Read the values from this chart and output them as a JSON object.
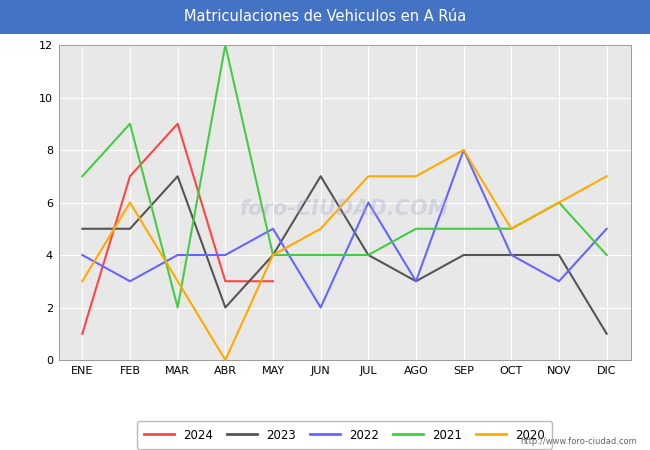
{
  "title": "Matriculaciones de Vehiculos en A Rúa",
  "title_bg_color": "#4472C4",
  "title_text_color": "#FFFFFF",
  "months": [
    "ENE",
    "FEB",
    "MAR",
    "ABR",
    "MAY",
    "JUN",
    "JUL",
    "AGO",
    "SEP",
    "OCT",
    "NOV",
    "DIC"
  ],
  "ylim": [
    0,
    12
  ],
  "yticks": [
    0,
    2,
    4,
    6,
    8,
    10,
    12
  ],
  "series": {
    "2024": {
      "color": "#FF4444",
      "values": [
        1,
        7,
        9,
        3,
        3,
        null,
        null,
        null,
        null,
        null,
        null,
        null
      ]
    },
    "2023": {
      "color": "#555555",
      "values": [
        5,
        5,
        7,
        2,
        4,
        7,
        4,
        3,
        4,
        4,
        4,
        1
      ]
    },
    "2022": {
      "color": "#6666FF",
      "values": [
        4,
        3,
        4,
        4,
        5,
        2,
        6,
        3,
        8,
        4,
        3,
        5
      ]
    },
    "2021": {
      "color": "#44CC44",
      "values": [
        7,
        9,
        2,
        12,
        4,
        4,
        4,
        5,
        5,
        5,
        6,
        4
      ]
    },
    "2020": {
      "color": "#FFAA00",
      "values": [
        3,
        6,
        3,
        0,
        4,
        5,
        7,
        7,
        8,
        5,
        6,
        7
      ]
    }
  },
  "legend_order": [
    "2024",
    "2023",
    "2022",
    "2021",
    "2020"
  ],
  "url": "http://www.foro-ciudad.com",
  "fig_bg_color": "#FFFFFF",
  "plot_bg_color": "#E8E8E8",
  "grid_color": "#FFFFFF",
  "watermark_text": "foro-CIUDAD.COM",
  "watermark_color": "#AAAACC",
  "watermark_alpha": 0.35
}
